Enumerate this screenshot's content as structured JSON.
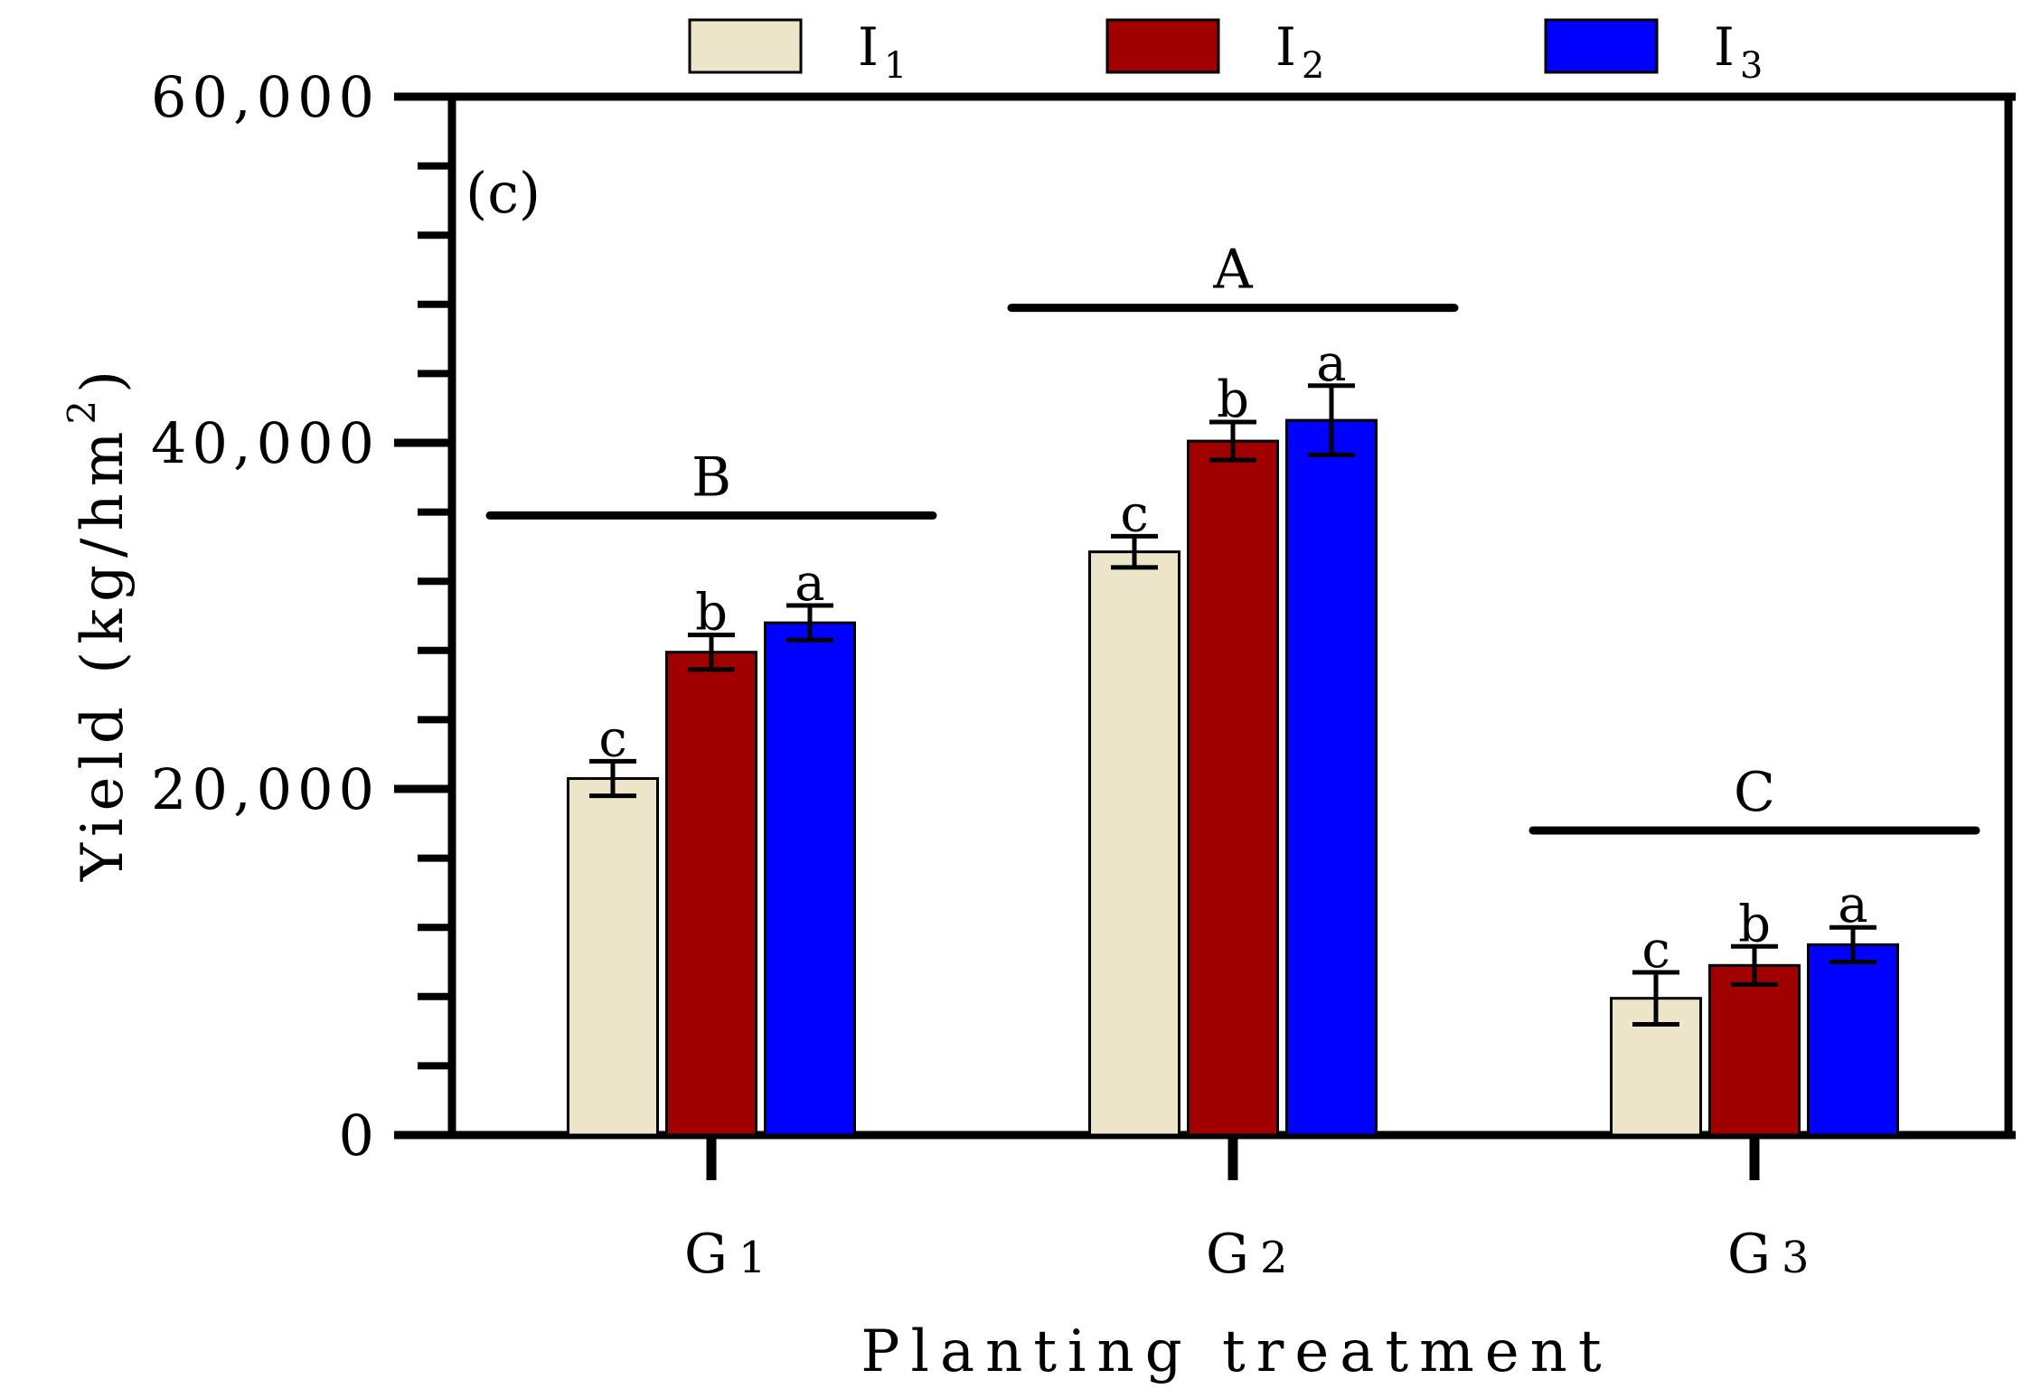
{
  "chart_data": {
    "type": "bar",
    "panel_label": "(c)",
    "xlabel": "Planting treatment",
    "ylabel": "Yield (kg/hm",
    "ylabel_sup": "2",
    "ylabel_close": ")",
    "ylim": [
      0,
      60000
    ],
    "yticks": [
      {
        "value": 0,
        "label": "0"
      },
      {
        "value": 20000,
        "label": "20,000"
      },
      {
        "value": 40000,
        "label": "40,000"
      },
      {
        "value": 60000,
        "label": "60,000"
      }
    ],
    "minor_tick_step": 4000,
    "legend_position": "top",
    "categories": [
      {
        "base": "G",
        "sub": "1"
      },
      {
        "base": "G",
        "sub": "2"
      },
      {
        "base": "G",
        "sub": "3"
      }
    ],
    "series": [
      {
        "base": "I",
        "sub": "1",
        "color": "#ede5c9",
        "values": [
          20600,
          33700,
          7900
        ],
        "errors": [
          1000,
          900,
          1500
        ],
        "letters": [
          "c",
          "c",
          "c"
        ]
      },
      {
        "base": "I",
        "sub": "2",
        "color": "#a00000",
        "values": [
          27900,
          40100,
          9800
        ],
        "errors": [
          1000,
          1100,
          1100
        ],
        "letters": [
          "b",
          "b",
          "b"
        ]
      },
      {
        "base": "I",
        "sub": "3",
        "color": "#0000ff",
        "values": [
          29600,
          41300,
          11000
        ],
        "errors": [
          1000,
          2000,
          1000
        ],
        "letters": [
          "a",
          "a",
          "a"
        ]
      }
    ],
    "group_letters": [
      {
        "category": 0,
        "letter": "B",
        "value": 35800
      },
      {
        "category": 1,
        "letter": "A",
        "value": 47800
      },
      {
        "category": 2,
        "letter": "C",
        "value": 17600
      }
    ]
  }
}
